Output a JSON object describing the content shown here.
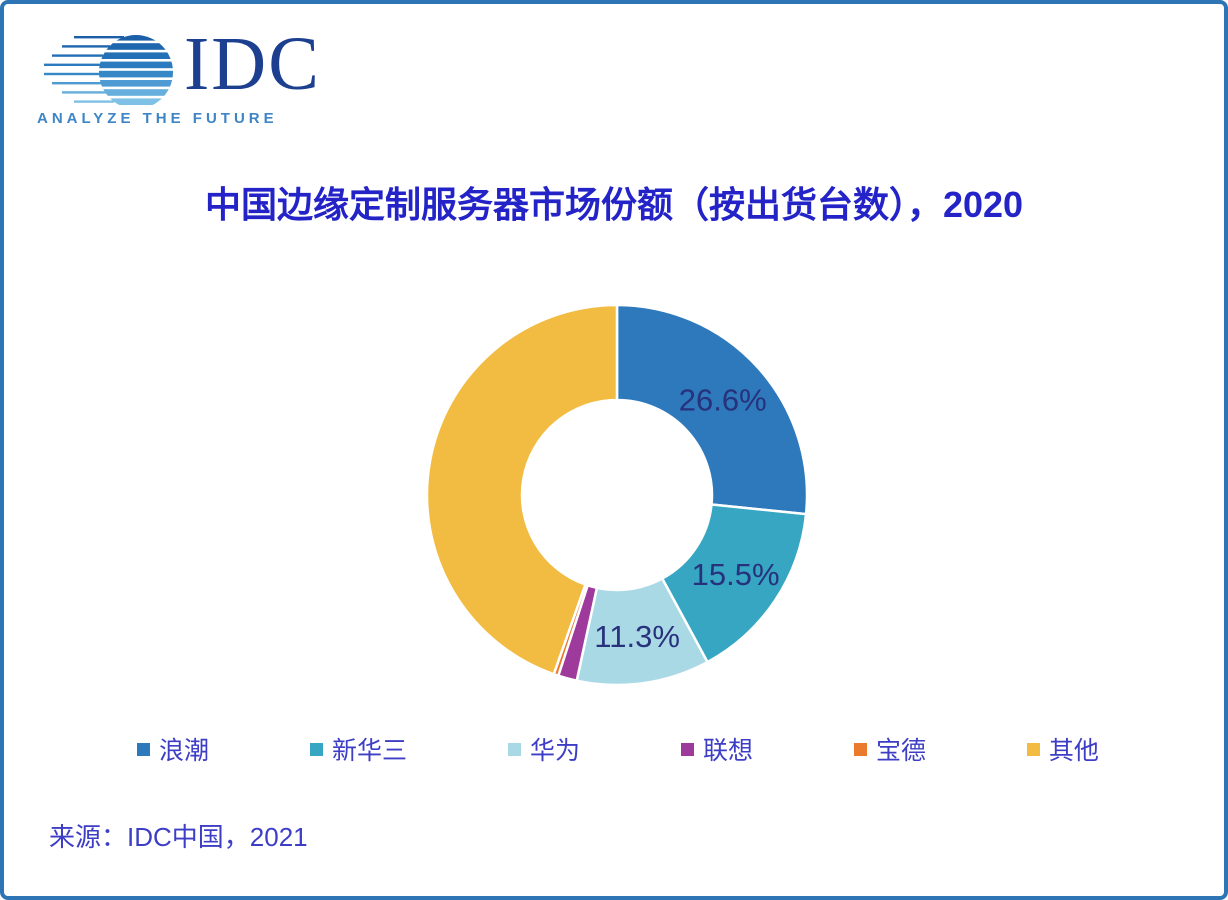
{
  "logo": {
    "brand": "IDC",
    "tagline": "ANALYZE THE FUTURE"
  },
  "title": "中国边缘定制服务器市场份额（按出货台数），2020",
  "source": "来源：IDC中国，2021",
  "colors": {
    "frame": "#2E75B6",
    "title_text": "#2323C8",
    "data_label_text": "#28317C",
    "legend_text": "#3D3DC6",
    "logo_brand": "#1C3F8F",
    "logo_tagline": "#3D85C6"
  },
  "chart_data": {
    "type": "pie",
    "subtype": "donut",
    "title": "中国边缘定制服务器市场份额（按出货台数），2020",
    "start_angle_deg": 0,
    "direction": "clockwise",
    "legend_position": "bottom",
    "inner_radius_ratio": 0.5,
    "series": [
      {
        "name": "浪潮",
        "value": 26.6,
        "data_label": "26.6%",
        "color": "#2D79BC",
        "estimated": false
      },
      {
        "name": "新华三",
        "value": 15.5,
        "data_label": "15.5%",
        "color": "#36A6C2",
        "estimated": false
      },
      {
        "name": "华为",
        "value": 11.3,
        "data_label": "11.3%",
        "color": "#AAD9E6",
        "estimated": false
      },
      {
        "name": "联想",
        "value": 1.6,
        "data_label": "",
        "color": "#9E3A9B",
        "estimated": true
      },
      {
        "name": "宝德",
        "value": 0.4,
        "data_label": "",
        "color": "#EA7A2E",
        "estimated": true
      },
      {
        "name": "其他",
        "value": 44.6,
        "data_label": "",
        "color": "#F2BC42",
        "estimated": true
      }
    ]
  }
}
